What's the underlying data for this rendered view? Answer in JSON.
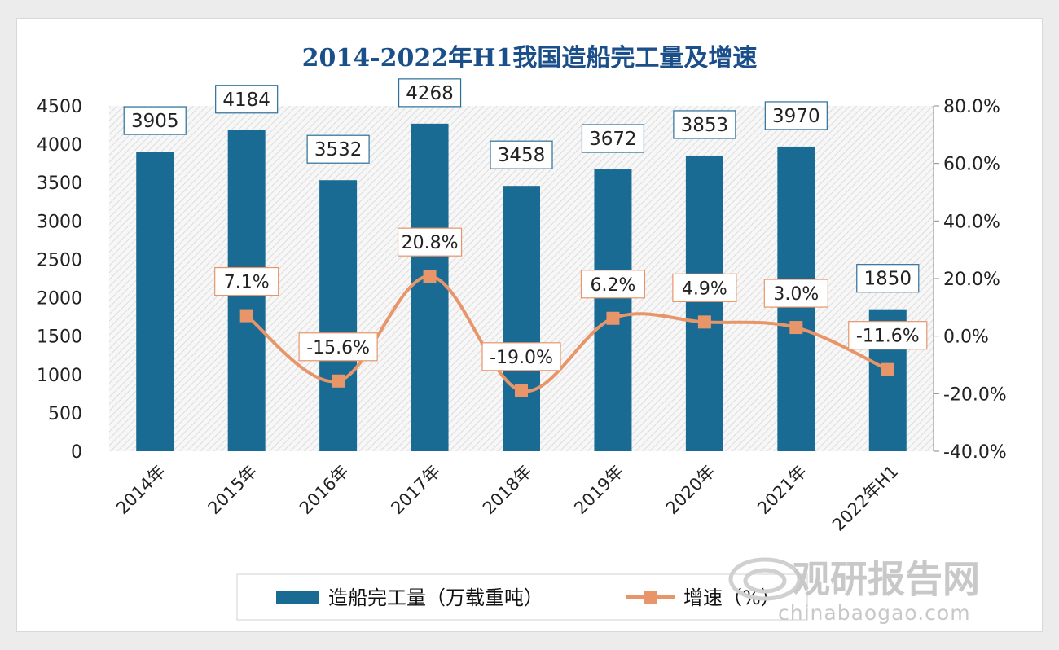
{
  "chart_data": {
    "type": "bar+line",
    "title": "2014-2022年H1我国造船完工量及增速",
    "categories": [
      "2014年",
      "2015年",
      "2016年",
      "2017年",
      "2018年",
      "2019年",
      "2020年",
      "2021年",
      "2022年H1"
    ],
    "series": [
      {
        "name": "造船完工量（万载重吨）",
        "type": "bar",
        "axis": "left",
        "color": "#1a6b94",
        "values": [
          3905,
          4184,
          3532,
          4268,
          3458,
          3672,
          3853,
          3970,
          1850
        ],
        "labels": [
          "3905",
          "4184",
          "3532",
          "4268",
          "3458",
          "3672",
          "3853",
          "3970",
          "1850"
        ]
      },
      {
        "name": "增速（%）",
        "type": "line",
        "axis": "right",
        "color": "#e8956a",
        "values": [
          null,
          7.1,
          -15.6,
          20.8,
          -19.0,
          6.2,
          4.9,
          3.0,
          -11.6
        ],
        "labels": [
          null,
          "7.1%",
          "-15.6%",
          "20.8%",
          "-19.0%",
          "6.2%",
          "4.9%",
          "3.0%",
          "-11.6%"
        ]
      }
    ],
    "y_left": {
      "lim": [
        0,
        4500
      ],
      "ticks": [
        "0",
        "500",
        "1000",
        "1500",
        "2000",
        "2500",
        "3000",
        "3500",
        "4000",
        "4500"
      ]
    },
    "y_right": {
      "lim": [
        -40,
        80
      ],
      "ticks": [
        "-40.0%",
        "-20.0%",
        "0.0%",
        "20.0%",
        "40.0%",
        "60.0%",
        "80.0%"
      ]
    },
    "legend_position": "bottom",
    "grid": false
  },
  "watermark": {
    "text_cn": "观研报告网",
    "text_en": "chinabaogao.com"
  }
}
